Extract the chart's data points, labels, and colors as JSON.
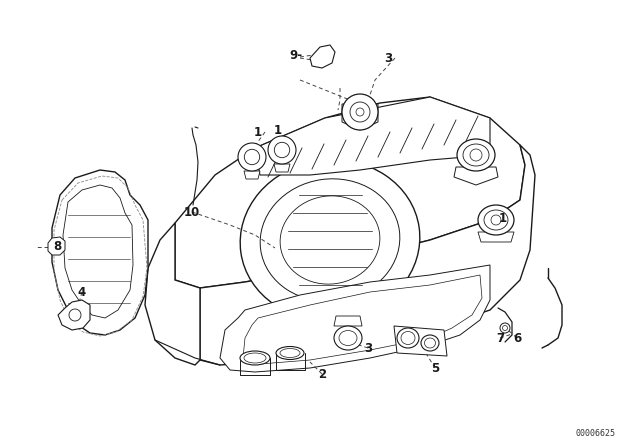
{
  "background_color": "#ffffff",
  "line_color": "#1a1a1a",
  "diagram_code": "00006625",
  "label_fontsize": 8.5,
  "fig_width": 6.4,
  "fig_height": 4.48,
  "dpi": 100,
  "labels": [
    [
      "1",
      258,
      132
    ],
    [
      "1",
      278,
      130
    ],
    [
      "1",
      503,
      218
    ],
    [
      "2",
      322,
      374
    ],
    [
      "3",
      388,
      58
    ],
    [
      "3",
      368,
      348
    ],
    [
      "4",
      82,
      292
    ],
    [
      "5",
      435,
      368
    ],
    [
      "6",
      517,
      338
    ],
    [
      "7",
      500,
      338
    ],
    [
      "8",
      57,
      246
    ],
    [
      "9-",
      296,
      55
    ],
    [
      "10",
      192,
      212
    ]
  ]
}
